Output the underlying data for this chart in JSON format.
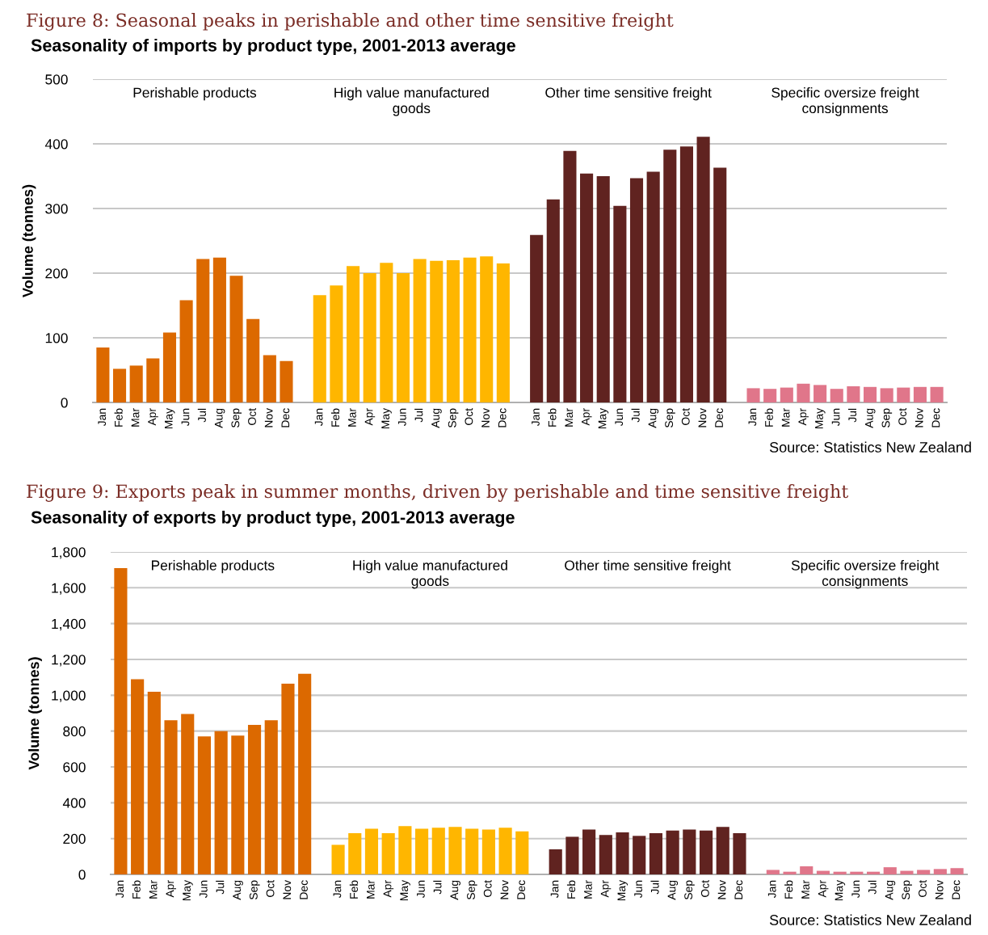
{
  "chart_data": [
    {
      "type": "bar",
      "annotations": [
        "Perishable products",
        "High value manufactured\ngoods",
        "Other time sensitive freight",
        "Specific oversize freight\nconsignments",
        "Source: Statistics New Zealand"
      ],
      "title": "Figure 8: Seasonal peaks in perishable and other time sensitive freight",
      "subtitle": "Seasonality of imports by product type, 2001-2013 average",
      "ylabel": "Volume (tonnes)",
      "categories": [
        "Jan",
        "Feb",
        "Mar",
        "Apr",
        "May",
        "Jun",
        "Jul",
        "Aug",
        "Sep",
        "Oct",
        "Nov",
        "Dec",
        null,
        "Jan",
        "Feb",
        "Mar",
        "Apr",
        "May",
        "Jun",
        "Jul",
        "Aug",
        "Sep",
        "Oct",
        "Nov",
        "Dec",
        null,
        "Jan",
        "Feb",
        "Mar",
        "Apr",
        "May",
        "Jun",
        "Jul",
        "Aug",
        "Sep",
        "Oct",
        "Nov",
        "Dec",
        null,
        "Jan",
        "Feb",
        "Mar",
        "Apr",
        "May",
        "Jun",
        "Jul",
        "Aug",
        "Sep",
        "Oct",
        "Nov",
        "Dec"
      ],
      "series": [
        {
          "color": "#dc6900",
          "values": [
            85,
            52,
            57,
            68,
            108,
            158,
            222,
            224,
            196,
            129,
            73,
            64,
            null,
            null,
            null,
            null,
            null,
            null,
            null,
            null,
            null,
            null,
            null,
            null,
            null,
            null,
            null,
            null,
            null,
            null,
            null,
            null,
            null,
            null,
            null,
            null,
            null,
            null,
            null,
            null,
            null,
            null,
            null,
            null,
            null,
            null,
            null,
            null,
            null,
            null,
            null
          ]
        },
        {
          "color": "#ffb600",
          "values": [
            null,
            null,
            null,
            null,
            null,
            null,
            null,
            null,
            null,
            null,
            null,
            null,
            null,
            166,
            181,
            211,
            200,
            216,
            200,
            222,
            219,
            220,
            224,
            226,
            215,
            null,
            null,
            null,
            null,
            null,
            null,
            null,
            null,
            null,
            null,
            null,
            null,
            null,
            null,
            null,
            null,
            null,
            null,
            null,
            null,
            null,
            null,
            null,
            null,
            null,
            null
          ]
        },
        {
          "color": "#602320",
          "values": [
            null,
            null,
            null,
            null,
            null,
            null,
            null,
            null,
            null,
            null,
            null,
            null,
            null,
            null,
            null,
            null,
            null,
            null,
            null,
            null,
            null,
            null,
            null,
            null,
            null,
            null,
            259,
            314,
            389,
            354,
            350,
            304,
            347,
            357,
            391,
            396,
            411,
            363,
            null,
            null,
            null,
            null,
            null,
            null,
            null,
            null,
            null,
            null,
            null,
            null,
            null
          ]
        },
        {
          "color": "#e0768a",
          "values": [
            null,
            null,
            null,
            null,
            null,
            null,
            null,
            null,
            null,
            null,
            null,
            null,
            null,
            null,
            null,
            null,
            null,
            null,
            null,
            null,
            null,
            null,
            null,
            null,
            null,
            null,
            null,
            null,
            null,
            null,
            null,
            null,
            null,
            null,
            null,
            null,
            null,
            null,
            null,
            22,
            21,
            23,
            29,
            27,
            21,
            25,
            24,
            22,
            23,
            24,
            24
          ]
        }
      ],
      "ylim": [
        0,
        500
      ],
      "yticks": [
        0,
        100,
        200,
        300,
        400,
        500
      ],
      "grid": "y",
      "legend": false
    },
    {
      "type": "bar",
      "annotations": [
        "Perishable products",
        "High value manufactured\ngoods",
        "Other time sensitive freight",
        "Specific oversize freight\nconsignments",
        "Source: Statistics New Zealand"
      ],
      "title": "Figure 9: Exports peak in summer months, driven by perishable and time sensitive freight",
      "subtitle": "Seasonality of exports by product type, 2001-2013 average",
      "ylabel": "Volume (tonnes)",
      "categories": [
        "Jan",
        "Feb",
        "Mar",
        "Apr",
        "May",
        "Jun",
        "Jul",
        "Aug",
        "Sep",
        "Oct",
        "Nov",
        "Dec",
        null,
        "Jan",
        "Feb",
        "Mar",
        "Apr",
        "May",
        "Jun",
        "Jul",
        "Aug",
        "Sep",
        "Oct",
        "Nov",
        "Dec",
        null,
        "Jan",
        "Feb",
        "Mar",
        "Apr",
        "May",
        "Jun",
        "Jul",
        "Aug",
        "Sep",
        "Oct",
        "Nov",
        "Dec",
        null,
        "Jan",
        "Feb",
        "Mar",
        "Apr",
        "May",
        "Jun",
        "Jul",
        "Aug",
        "Sep",
        "Oct",
        "Nov",
        "Dec"
      ],
      "series": [
        {
          "color": "#dc6900",
          "values": [
            1710,
            1090,
            1020,
            860,
            895,
            770,
            800,
            775,
            835,
            860,
            1065,
            1120,
            null,
            null,
            null,
            null,
            null,
            null,
            null,
            null,
            null,
            null,
            null,
            null,
            null,
            null,
            null,
            null,
            null,
            null,
            null,
            null,
            null,
            null,
            null,
            null,
            null,
            null,
            null,
            null,
            null,
            null,
            null,
            null,
            null,
            null,
            null,
            null,
            null,
            null,
            null
          ]
        },
        {
          "color": "#ffb600",
          "values": [
            null,
            null,
            null,
            null,
            null,
            null,
            null,
            null,
            null,
            null,
            null,
            null,
            null,
            165,
            230,
            255,
            230,
            270,
            255,
            260,
            265,
            255,
            250,
            260,
            240,
            null,
            null,
            null,
            null,
            null,
            null,
            null,
            null,
            null,
            null,
            null,
            null,
            null,
            null,
            null,
            null,
            null,
            null,
            null,
            null,
            null,
            null,
            null,
            null,
            null,
            null
          ]
        },
        {
          "color": "#602320",
          "values": [
            null,
            null,
            null,
            null,
            null,
            null,
            null,
            null,
            null,
            null,
            null,
            null,
            null,
            null,
            null,
            null,
            null,
            null,
            null,
            null,
            null,
            null,
            null,
            null,
            null,
            null,
            140,
            210,
            250,
            220,
            235,
            215,
            230,
            245,
            250,
            245,
            265,
            230,
            null,
            null,
            null,
            null,
            null,
            null,
            null,
            null,
            null,
            null,
            null,
            null,
            null
          ]
        },
        {
          "color": "#e0768a",
          "values": [
            null,
            null,
            null,
            null,
            null,
            null,
            null,
            null,
            null,
            null,
            null,
            null,
            null,
            null,
            null,
            null,
            null,
            null,
            null,
            null,
            null,
            null,
            null,
            null,
            null,
            null,
            null,
            null,
            null,
            null,
            null,
            null,
            null,
            null,
            null,
            null,
            null,
            null,
            null,
            25,
            15,
            45,
            20,
            15,
            15,
            15,
            40,
            20,
            25,
            30,
            35
          ]
        }
      ],
      "ylim": [
        0,
        1800
      ],
      "yticks": [
        0,
        200,
        400,
        600,
        800,
        {
          "value": 1000,
          "label": "1,000"
        },
        {
          "value": 1200,
          "label": "1,200"
        },
        {
          "value": 1400,
          "label": "1,400"
        },
        {
          "value": 1600,
          "label": "1,600"
        },
        {
          "value": 1800,
          "label": "1,800"
        }
      ],
      "grid": "y",
      "legend": false
    }
  ]
}
